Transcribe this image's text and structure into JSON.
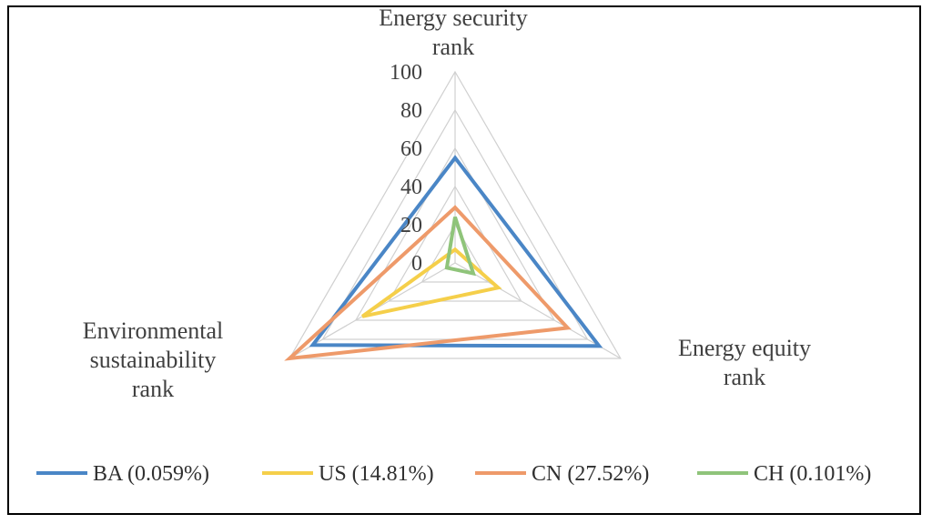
{
  "chart_data": {
    "type": "radar",
    "axes": [
      "Energy security rank",
      "Energy equity rank",
      "Environmental sustainability rank"
    ],
    "axis_label_lines": [
      [
        "Energy security",
        "rank"
      ],
      [
        "Energy equity",
        "rank"
      ],
      [
        "Environmental",
        "sustainability",
        "rank"
      ]
    ],
    "rlim": [
      0,
      100
    ],
    "ticks": [
      0,
      20,
      40,
      60,
      80,
      100
    ],
    "grid": true,
    "legend_position": "bottom",
    "series": [
      {
        "name": "BA (0.059%)",
        "color": "#4a86c6",
        "values": [
          55,
          87,
          86
        ]
      },
      {
        "name": "US (14.81%)",
        "color": "#f5cf4a",
        "values": [
          7,
          26,
          56
        ]
      },
      {
        "name": "CN (27.52%)",
        "color": "#ee9a6a",
        "values": [
          29,
          68,
          100
        ]
      },
      {
        "name": "CH (0.101%)",
        "color": "#8fc47a",
        "values": [
          24,
          11,
          5
        ]
      }
    ]
  }
}
